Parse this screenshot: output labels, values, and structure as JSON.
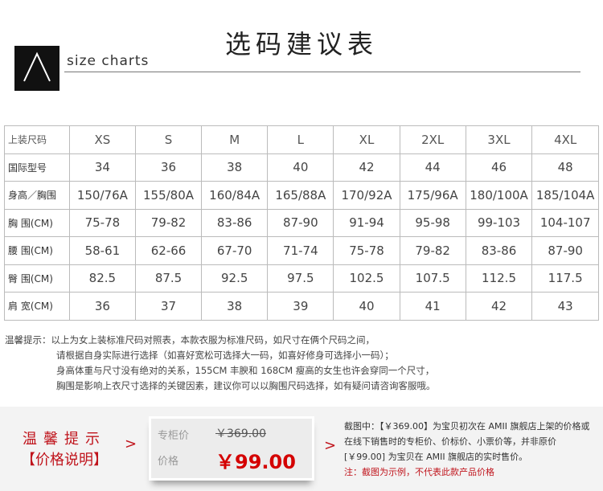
{
  "header": {
    "title": "选码建议表",
    "subtitle": "size charts",
    "logo_icon": "mountain-lambda-logo"
  },
  "table": {
    "header": [
      "上装尺码",
      "XS",
      "S",
      "M",
      "L",
      "XL",
      "2XL",
      "3XL",
      "4XL"
    ],
    "rows": [
      [
        "国际型号",
        "34",
        "36",
        "38",
        "40",
        "42",
        "44",
        "46",
        "48"
      ],
      [
        "身高／胸围",
        "150/76A",
        "155/80A",
        "160/84A",
        "165/88A",
        "170/92A",
        "175/96A",
        "180/100A",
        "185/104A"
      ],
      [
        "胸 围(CM)",
        "75-78",
        "79-82",
        "83-86",
        "87-90",
        "91-94",
        "95-98",
        "99-103",
        "104-107"
      ],
      [
        "腰 围(CM)",
        "58-61",
        "62-66",
        "67-70",
        "71-74",
        "75-78",
        "79-82",
        "83-86",
        "87-90"
      ],
      [
        "臀 围(CM)",
        "82.5",
        "87.5",
        "92.5",
        "97.5",
        "102.5",
        "107.5",
        "112.5",
        "117.5"
      ],
      [
        "肩 宽(CM)",
        "36",
        "37",
        "38",
        "39",
        "40",
        "41",
        "42",
        "43"
      ]
    ]
  },
  "notes": {
    "label": "温馨提示：",
    "lines": [
      "以上为女上装标准尺码对照表，本款衣服为标准尺码，如尺寸在俩个尺码之间，",
      "请根据自身实际进行选择（如喜好宽松可选择大一码，如喜好修身可选择小一码）；",
      "身高体重与尺寸没有绝对的关系，155CM 丰腴和 168CM 瘦高的女生也许会穿同一个尺寸，",
      "胸围是影响上衣尺寸选择的关键因素，建议你可以以胸围尺码选择，如有疑问请咨询客服哦。"
    ]
  },
  "price_info": {
    "tip_title": "温馨提示",
    "tip_sub": "【价格说明】",
    "arrow": ">",
    "counter_label": "专柜价",
    "counter_price": "￥369.00",
    "price_label": "价格",
    "price": "￥99.00",
    "desc_lines": [
      "截图中：【￥369.00】为宝贝初次在 AMII 旗舰店上架的价格或在线下销售时的专柜价、价标价、小票价等，并非原价",
      "[￥99.00] 为宝贝在 AMII 旗舰店的实时售价。"
    ],
    "note": "注：截图为示例，不代表此款产品价格",
    "accent": "#c0141c"
  }
}
